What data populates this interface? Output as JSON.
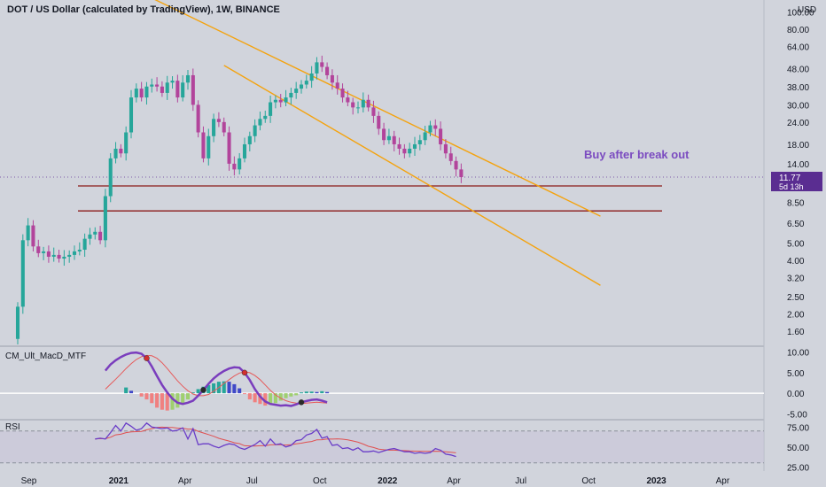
{
  "header": {
    "title": "DOT / US Dollar (calculated by TradingView), 1W, BINANCE"
  },
  "annotation": "Buy after break out",
  "price_tag": {
    "price": "11.77",
    "countdown": "5d 13h"
  },
  "colors": {
    "up": "#26a69a",
    "down": "#b2449b",
    "channel": "#f4a30f",
    "support": "#8b1a1a",
    "macd_line": "#7a3dbd",
    "signal_line": "#e65a5a",
    "rsi_line": "#6a3dc8",
    "rsi_ma": "#e05050",
    "price_tag_bg": "#5a2d91",
    "annotation": "#7b4bc0"
  },
  "chart_data": [
    {
      "type": "candlestick",
      "title": "DOT / US Dollar (calculated by TradingView), 1W, BINANCE",
      "scale": "log",
      "currency": "USD",
      "y_ticks": [
        "100.00",
        "80.00",
        "64.00",
        "48.00",
        "38.00",
        "30.00",
        "24.00",
        "18.00",
        "14.00",
        "11.77",
        "8.50",
        "6.50",
        "5.00",
        "4.00",
        "3.20",
        "2.50",
        "2.00",
        "1.60"
      ],
      "x_ticks": [
        "Sep",
        "2021",
        "Apr",
        "Jul",
        "Oct",
        "2022",
        "Apr",
        "Jul",
        "Oct",
        "2023",
        "Apr"
      ],
      "x_range": [
        "2020-08-17",
        "2023-05-15"
      ],
      "start": "2020-08-17",
      "interval": "1 week",
      "closes": [
        2.2,
        5.2,
        6.3,
        4.8,
        4.4,
        4.5,
        4.2,
        4.3,
        4.1,
        4.2,
        4.3,
        4.5,
        4.6,
        5.3,
        5.6,
        5.8,
        5.2,
        9.2,
        15,
        17,
        16,
        21,
        33,
        37,
        33,
        38,
        39,
        38,
        35,
        40,
        41,
        33,
        40,
        44,
        30,
        21,
        15,
        20,
        25,
        24,
        21,
        14,
        13,
        15,
        18,
        20,
        23,
        25,
        26,
        31,
        32,
        31,
        33,
        35,
        37,
        39,
        41,
        45,
        52,
        49,
        44,
        40,
        37,
        33,
        31,
        29,
        29,
        32,
        29,
        26,
        22,
        19,
        20,
        18,
        17,
        16,
        17,
        18,
        19,
        21,
        23,
        22,
        18,
        16,
        14.5,
        13,
        11.77
      ],
      "horizontal_levels": [
        10.5,
        7.6
      ],
      "channel_upper": [
        {
          "x": "2020-12-28",
          "y": 150
        },
        {
          "x": "2022-10-17",
          "y": 7.1
        }
      ],
      "channel_lower": [
        {
          "x": "2021-05-24",
          "y": 50
        },
        {
          "x": "2022-10-17",
          "y": 2.9
        }
      ]
    },
    {
      "type": "histogram+line",
      "title": "CM_Ult_MacD_MTF",
      "y_ticks": [
        "10.00",
        "5.00",
        "0.00",
        "-5.00"
      ],
      "ylim": [
        -6,
        11
      ],
      "start": "2020-12-14",
      "macd": [
        5.5,
        7.0,
        8.0,
        8.8,
        9.4,
        9.8,
        9.9,
        9.6,
        8.5,
        6.5,
        4.2,
        2.0,
        0.2,
        -1.3,
        -2.3,
        -2.6,
        -2.3,
        -1.8,
        -0.6,
        0.8,
        2.3,
        3.6,
        4.6,
        5.4,
        6.0,
        6.3,
        6.2,
        5.0,
        3.2,
        1.0,
        -0.8,
        -2.0,
        -2.6,
        -2.8,
        -3.0,
        -2.9,
        -3.1,
        -2.7,
        -2.2,
        -1.9,
        -1.6,
        -1.5,
        -1.8,
        -2.2
      ],
      "signal": [
        1.0,
        2.2,
        3.4,
        4.7,
        6.0,
        7.2,
        8.2,
        8.9,
        9.2,
        9.1,
        8.5,
        7.4,
        6.0,
        4.5,
        3.0,
        1.7,
        0.6,
        -0.2,
        -0.6,
        -0.6,
        -0.3,
        0.5,
        1.4,
        2.4,
        3.3,
        4.2,
        4.9,
        5.2,
        5.0,
        4.3,
        3.3,
        2.0,
        0.7,
        -0.4,
        -1.2,
        -1.8,
        -2.2,
        -2.4,
        -2.5,
        -2.4,
        -2.3,
        -2.2,
        -2.3,
        -2.4
      ],
      "histogram": [
        0,
        0,
        0,
        0,
        1.4,
        0.6,
        0,
        -0.8,
        -1.5,
        -2.4,
        -3.5,
        -4.0,
        -4.2,
        -4.0,
        -3.5,
        -2.6,
        -1.5,
        0.2,
        1.0,
        1.6,
        2.0,
        2.4,
        2.8,
        2.9,
        2.8,
        2.2,
        1.2,
        -0.2,
        -1.5,
        -2.2,
        -2.6,
        -3.0,
        -2.8,
        -2.4,
        -1.8,
        -1.2,
        -0.8,
        -0.5,
        0.2,
        0.4,
        0.4,
        0.3,
        0.5,
        0.3
      ]
    },
    {
      "type": "line",
      "title": "RSI",
      "y_ticks": [
        "75.00",
        "50.00",
        "25.00"
      ],
      "ylim": [
        22,
        82
      ],
      "bands": [
        30,
        70
      ],
      "start": "2020-11-30",
      "rsi": [
        60,
        61,
        60,
        68,
        77,
        70,
        80,
        76,
        71,
        73,
        80,
        75,
        74,
        73,
        74,
        70,
        71,
        74,
        60,
        73,
        53,
        54,
        54,
        51,
        49,
        52,
        54,
        53,
        49,
        47,
        50,
        53,
        58,
        51,
        60,
        53,
        54,
        50,
        52,
        58,
        59,
        65,
        67,
        72,
        61,
        63,
        52,
        53,
        48,
        49,
        46,
        49,
        44,
        44,
        45,
        43,
        45,
        47,
        48,
        46,
        44,
        44,
        42,
        43,
        42,
        43,
        48,
        46,
        41,
        40,
        38
      ]
    }
  ]
}
